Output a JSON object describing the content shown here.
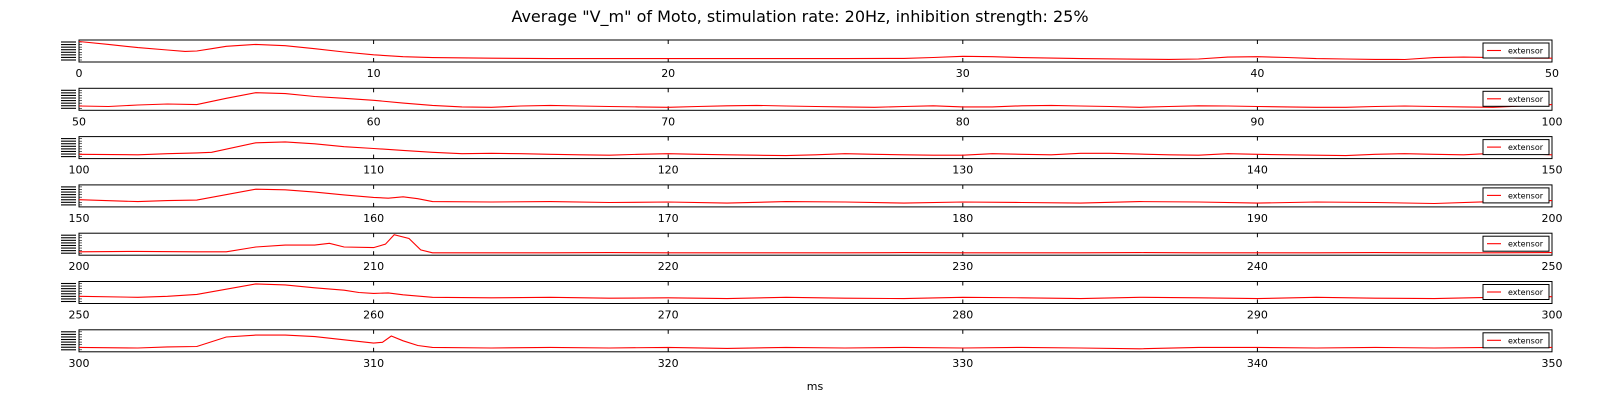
{
  "chart_data": {
    "type": "line",
    "title": "Average \"V_m\" of Moto, stimulation rate: 20Hz, inhibition strength: 25%",
    "xlabel": "ms",
    "ylabel": "",
    "grid": false,
    "legend_placement": "right",
    "line_color": "#ff0000",
    "panels": [
      {
        "xlim": [
          0,
          50
        ],
        "xticks": [
          0,
          10,
          20,
          30,
          40,
          50
        ],
        "series": [
          {
            "name": "extensor",
            "x": [
              0,
              1,
              2,
              3,
              3.6,
              4,
              4.5,
              5,
              6,
              7,
              8,
              9,
              10,
              11,
              12,
              14,
              16,
              18,
              20,
              22,
              24,
              26,
              28,
              29,
              30,
              31,
              32,
              34,
              36,
              37,
              38,
              39,
              40,
              41,
              42,
              43,
              44,
              45,
              46,
              47,
              48,
              49,
              50
            ],
            "y": [
              1.0,
              0.85,
              0.68,
              0.55,
              0.48,
              0.5,
              0.62,
              0.75,
              0.85,
              0.78,
              0.62,
              0.45,
              0.3,
              0.2,
              0.15,
              0.12,
              0.1,
              0.1,
              0.1,
              0.1,
              0.1,
              0.1,
              0.11,
              0.16,
              0.22,
              0.2,
              0.15,
              0.1,
              0.07,
              0.06,
              0.08,
              0.18,
              0.2,
              0.16,
              0.1,
              0.08,
              0.06,
              0.05,
              0.15,
              0.18,
              0.15,
              0.12,
              0.12
            ]
          }
        ]
      },
      {
        "xlim": [
          50,
          100
        ],
        "xticks": [
          50,
          60,
          70,
          80,
          90,
          100
        ],
        "series": [
          {
            "name": "extensor",
            "x": [
              50,
              51,
              52,
              53,
              54,
              55,
              56,
              57,
              58,
              59,
              60,
              61,
              62,
              63,
              64,
              65,
              66,
              67,
              68,
              69,
              70,
              71,
              72,
              73,
              74,
              75,
              76,
              77,
              78,
              79,
              80,
              81,
              82,
              83,
              84,
              85,
              86,
              87,
              88,
              89,
              90,
              91,
              92,
              93,
              94,
              95,
              96,
              97,
              98,
              99,
              100
            ],
            "y": [
              0.15,
              0.12,
              0.2,
              0.25,
              0.22,
              0.55,
              0.85,
              0.8,
              0.65,
              0.55,
              0.45,
              0.3,
              0.18,
              0.1,
              0.08,
              0.15,
              0.18,
              0.15,
              0.12,
              0.1,
              0.08,
              0.12,
              0.16,
              0.18,
              0.15,
              0.12,
              0.1,
              0.08,
              0.12,
              0.16,
              0.1,
              0.1,
              0.16,
              0.18,
              0.15,
              0.12,
              0.08,
              0.12,
              0.16,
              0.15,
              0.12,
              0.1,
              0.08,
              0.08,
              0.12,
              0.15,
              0.12,
              0.1,
              0.08,
              0.15,
              0.22
            ]
          }
        ]
      },
      {
        "xlim": [
          100,
          150
        ],
        "xticks": [
          100,
          110,
          120,
          130,
          140,
          150
        ],
        "series": [
          {
            "name": "extensor",
            "x": [
              100,
              102,
              103,
              104,
              104.5,
              106,
              107,
              108,
              109,
              110,
              111,
              112,
              113,
              114,
              115,
              116,
              117,
              118,
              119,
              120,
              121,
              122,
              123,
              124,
              125,
              126,
              127,
              128,
              129,
              130,
              131,
              132,
              133,
              134,
              135,
              136,
              137,
              138,
              139,
              140,
              141,
              142,
              143,
              144,
              145,
              146,
              147,
              148,
              149,
              150
            ],
            "y": [
              0.15,
              0.12,
              0.18,
              0.22,
              0.25,
              0.75,
              0.8,
              0.7,
              0.55,
              0.45,
              0.35,
              0.25,
              0.18,
              0.2,
              0.18,
              0.15,
              0.12,
              0.1,
              0.15,
              0.18,
              0.15,
              0.12,
              0.1,
              0.08,
              0.12,
              0.18,
              0.15,
              0.12,
              0.1,
              0.1,
              0.18,
              0.15,
              0.12,
              0.2,
              0.2,
              0.16,
              0.12,
              0.1,
              0.18,
              0.15,
              0.12,
              0.1,
              0.08,
              0.15,
              0.18,
              0.15,
              0.12,
              0.2,
              0.18,
              0.12
            ]
          }
        ]
      },
      {
        "xlim": [
          150,
          200
        ],
        "xticks": [
          150,
          160,
          170,
          180,
          190,
          200
        ],
        "series": [
          {
            "name": "extensor",
            "x": [
              150,
              152,
              153,
              154,
              156,
              157,
              158,
              159,
              160,
              160.5,
              161,
              161.5,
              162,
              164,
              166,
              168,
              170,
              172,
              174,
              176,
              178,
              180,
              182,
              184,
              186,
              188,
              190,
              192,
              194,
              196,
              198,
              200
            ],
            "y": [
              0.3,
              0.2,
              0.25,
              0.28,
              0.85,
              0.82,
              0.7,
              0.55,
              0.42,
              0.38,
              0.45,
              0.35,
              0.2,
              0.18,
              0.2,
              0.15,
              0.18,
              0.12,
              0.2,
              0.18,
              0.12,
              0.18,
              0.15,
              0.12,
              0.2,
              0.18,
              0.12,
              0.18,
              0.15,
              0.1,
              0.2,
              0.25
            ]
          }
        ]
      },
      {
        "xlim": [
          200,
          250
        ],
        "xticks": [
          200,
          210,
          220,
          230,
          240,
          250
        ],
        "series": [
          {
            "name": "extensor",
            "x": [
              200,
              202,
              204,
              205,
              206,
              207,
              208,
              208.5,
              209,
              210,
              210.4,
              210.7,
              211.2,
              211.6,
              212,
              214,
              216,
              218,
              220,
              222,
              224,
              226,
              228,
              230,
              232,
              234,
              236,
              238,
              240,
              242,
              244,
              246,
              248,
              250
            ],
            "y": [
              0.1,
              0.12,
              0.1,
              0.1,
              0.35,
              0.45,
              0.45,
              0.55,
              0.35,
              0.32,
              0.5,
              1.0,
              0.8,
              0.2,
              0.05,
              0.05,
              0.05,
              0.06,
              0.05,
              0.05,
              0.05,
              0.05,
              0.06,
              0.05,
              0.05,
              0.05,
              0.06,
              0.05,
              0.05,
              0.05,
              0.06,
              0.05,
              0.05,
              0.06
            ]
          }
        ]
      },
      {
        "xlim": [
          250,
          300
        ],
        "xticks": [
          250,
          260,
          270,
          280,
          290,
          300
        ],
        "series": [
          {
            "name": "extensor",
            "x": [
              250,
              252,
              253,
              254,
              256,
              257,
              258,
              259,
              259.5,
              260,
              260.5,
              261,
              262,
              264,
              266,
              268,
              270,
              272,
              274,
              276,
              278,
              280,
              282,
              284,
              286,
              288,
              290,
              292,
              294,
              296,
              298,
              300
            ],
            "y": [
              0.3,
              0.25,
              0.3,
              0.4,
              0.95,
              0.9,
              0.75,
              0.62,
              0.5,
              0.45,
              0.48,
              0.38,
              0.25,
              0.22,
              0.25,
              0.2,
              0.22,
              0.18,
              0.25,
              0.2,
              0.18,
              0.25,
              0.22,
              0.18,
              0.25,
              0.22,
              0.18,
              0.25,
              0.2,
              0.18,
              0.25,
              0.28
            ]
          }
        ]
      },
      {
        "xlim": [
          300,
          350
        ],
        "xticks": [
          300,
          310,
          320,
          330,
          340,
          350
        ],
        "series": [
          {
            "name": "extensor",
            "x": [
              300,
              302,
              303,
              304,
              305,
              306,
              307,
              308,
              309,
              310,
              310.3,
              310.6,
              311,
              311.5,
              312,
              314,
              316,
              318,
              320,
              322,
              324,
              326,
              328,
              330,
              332,
              334,
              336,
              338,
              340,
              342,
              344,
              346,
              348,
              350
            ],
            "y": [
              0.15,
              0.12,
              0.18,
              0.2,
              0.7,
              0.8,
              0.8,
              0.72,
              0.55,
              0.38,
              0.42,
              0.75,
              0.5,
              0.25,
              0.15,
              0.12,
              0.15,
              0.12,
              0.15,
              0.1,
              0.15,
              0.12,
              0.15,
              0.12,
              0.15,
              0.12,
              0.08,
              0.15,
              0.15,
              0.12,
              0.15,
              0.12,
              0.15,
              0.15
            ]
          }
        ]
      }
    ]
  }
}
